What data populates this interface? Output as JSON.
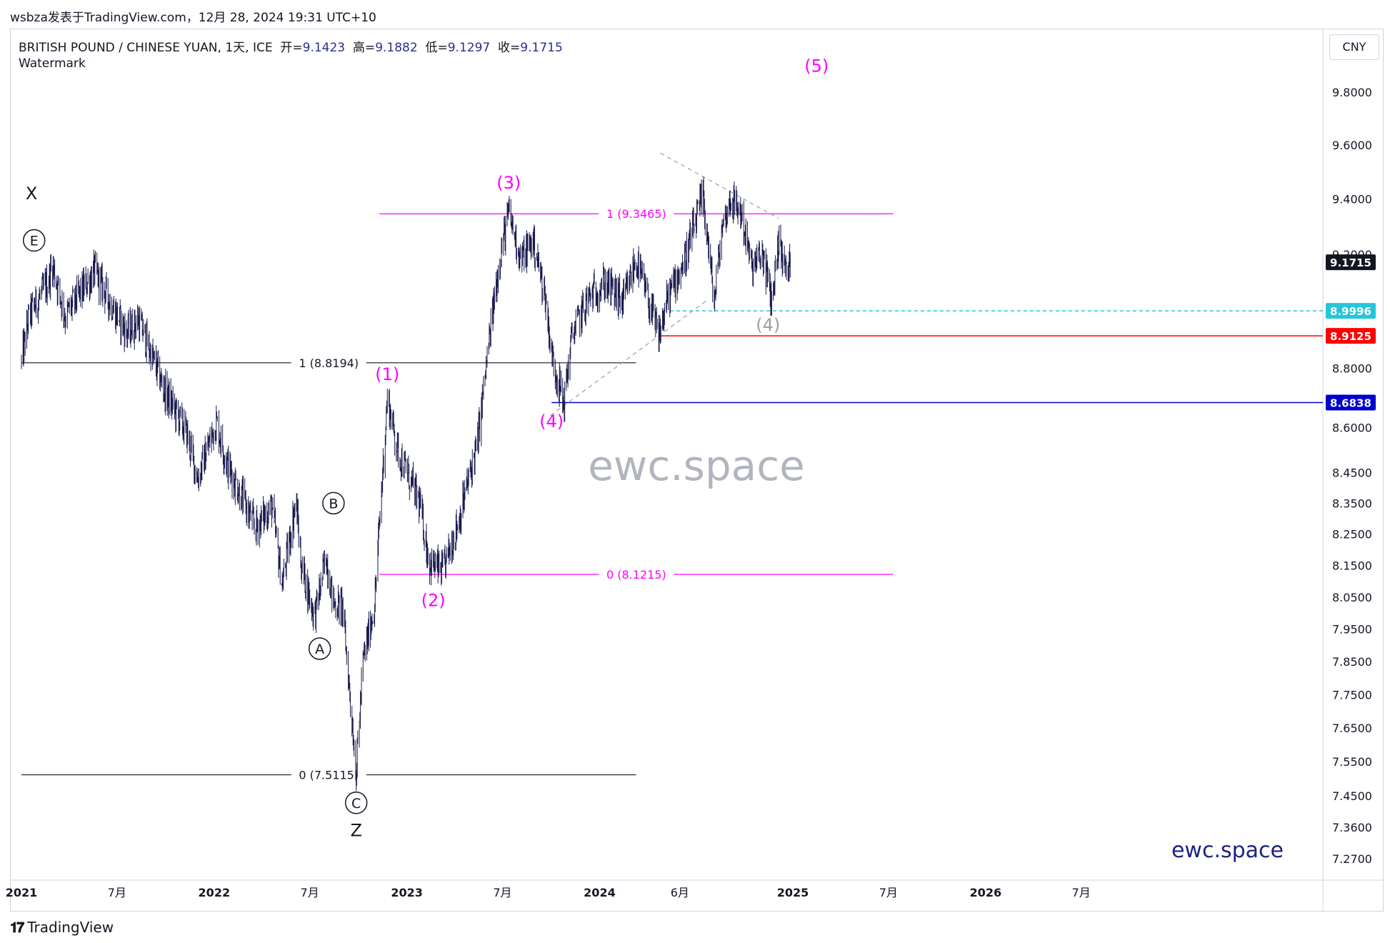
{
  "caption": "wsbza发表于TradingView.com，12月 28, 2024 19:31 UTC+10",
  "legend": {
    "symbol": "BRITISH POUND / CHINESE YUAN, 1天, ICE",
    "open_label": "开=",
    "open": "9.1423",
    "high_label": "高=",
    "high": "9.1882",
    "low_label": "低=",
    "low": "9.1297",
    "close_label": "收=",
    "close": "9.1715",
    "indicator": "Watermark"
  },
  "currency_button": "CNY",
  "watermark_center": "ewc.space",
  "watermark_corner": "ewc.space",
  "footer_brand": "TradingView",
  "colors": {
    "candle": "#1a1a4e",
    "magenta": "#ff00ff",
    "black_fib": "#131722",
    "cyan": "#26c6da",
    "red": "#ff0000",
    "blue": "#0000cc",
    "gray": "#9e9e9e"
  },
  "chart_data": {
    "type": "candlestick",
    "price_scale": "log",
    "ylim": [
      7.24,
      10.0
    ],
    "y_ticks": [
      "9.8000",
      "9.6000",
      "9.4000",
      "9.2000",
      "8.8000",
      "8.6000",
      "8.4500",
      "8.3500",
      "8.2500",
      "8.1500",
      "8.0500",
      "7.9500",
      "7.8500",
      "7.7500",
      "7.6500",
      "7.5500",
      "7.4500",
      "7.3600",
      "7.2700"
    ],
    "x_ticks": [
      "2021",
      "7月",
      "2022",
      "7月",
      "2023",
      "7月",
      "2024",
      "6月",
      "2025",
      "7月",
      "2026",
      "7月"
    ],
    "x_tick_dates": [
      "2021-01-01",
      "2021-07-01",
      "2022-01-01",
      "2022-07-01",
      "2023-01-01",
      "2023-07-01",
      "2024-01-01",
      "2024-06-01",
      "2025-01-01",
      "2025-07-01",
      "2026-01-01",
      "2026-07-01"
    ],
    "price_path": [
      [
        "2021-01-01",
        8.82
      ],
      [
        "2021-01-15",
        8.98
      ],
      [
        "2021-02-20",
        9.1
      ],
      [
        "2021-03-01",
        9.16
      ],
      [
        "2021-03-25",
        8.98
      ],
      [
        "2021-05-20",
        9.14
      ],
      [
        "2021-06-15",
        9.04
      ],
      [
        "2021-07-20",
        8.92
      ],
      [
        "2021-08-10",
        8.97
      ],
      [
        "2021-09-30",
        8.72
      ],
      [
        "2021-11-10",
        8.58
      ],
      [
        "2021-12-01",
        8.43
      ],
      [
        "2022-01-05",
        8.62
      ],
      [
        "2022-01-25",
        8.48
      ],
      [
        "2022-03-20",
        8.27
      ],
      [
        "2022-04-20",
        8.34
      ],
      [
        "2022-05-10",
        8.09
      ],
      [
        "2022-06-05",
        8.36
      ],
      [
        "2022-06-15",
        8.15
      ],
      [
        "2022-07-10",
        7.99
      ],
      [
        "2022-07-20",
        8.07
      ],
      [
        "2022-08-01",
        8.18
      ],
      [
        "2022-08-15",
        8.03
      ],
      [
        "2022-09-01",
        8.02
      ],
      [
        "2022-09-27",
        7.52
      ],
      [
        "2022-10-10",
        7.85
      ],
      [
        "2022-11-01",
        8.03
      ],
      [
        "2022-11-25",
        8.7
      ],
      [
        "2022-12-15",
        8.52
      ],
      [
        "2023-01-25",
        8.35
      ],
      [
        "2023-02-12",
        8.16
      ],
      [
        "2023-03-10",
        8.13
      ],
      [
        "2023-04-10",
        8.3
      ],
      [
        "2023-05-15",
        8.55
      ],
      [
        "2023-06-01",
        8.82
      ],
      [
        "2023-06-25",
        9.18
      ],
      [
        "2023-07-13",
        9.35
      ],
      [
        "2023-08-05",
        9.18
      ],
      [
        "2023-08-28",
        9.25
      ],
      [
        "2023-09-20",
        9.05
      ],
      [
        "2023-10-02",
        8.85
      ],
      [
        "2023-10-25",
        8.68
      ],
      [
        "2023-11-10",
        8.92
      ],
      [
        "2023-12-10",
        9.04
      ],
      [
        "2024-01-10",
        9.1
      ],
      [
        "2024-02-15",
        9.03
      ],
      [
        "2024-03-10",
        9.18
      ],
      [
        "2024-04-22",
        8.91
      ],
      [
        "2024-05-10",
        9.05
      ],
      [
        "2024-06-10",
        9.18
      ],
      [
        "2024-07-15",
        9.41
      ],
      [
        "2024-08-05",
        9.03
      ],
      [
        "2024-08-20",
        9.3
      ],
      [
        "2024-09-05",
        9.4
      ],
      [
        "2024-09-25",
        9.35
      ],
      [
        "2024-10-15",
        9.15
      ],
      [
        "2024-11-05",
        9.2
      ],
      [
        "2024-11-22",
        9.03
      ],
      [
        "2024-12-05",
        9.25
      ],
      [
        "2024-12-20",
        9.13
      ],
      [
        "2024-12-27",
        9.17
      ]
    ],
    "fib_levels": [
      {
        "label": "1 (8.8194)",
        "value": 8.8194,
        "x_start": "2021-01-01",
        "x_end": "2024-03-10",
        "color": "#131722"
      },
      {
        "label": "0 (7.5115)",
        "value": 7.5115,
        "x_start": "2021-01-01",
        "x_end": "2024-03-10",
        "color": "#131722"
      },
      {
        "label": "1 (9.3465)",
        "value": 9.3465,
        "x_start": "2022-11-10",
        "x_end": "2025-07-10",
        "color": "#ff00ff"
      },
      {
        "label": "0 (8.1215)",
        "value": 8.1215,
        "x_start": "2022-11-10",
        "x_end": "2025-07-10",
        "color": "#ff00ff"
      }
    ],
    "horizontal_lines": [
      {
        "value": 8.9996,
        "label": "8.9996",
        "x_start": "2024-05-01",
        "style": "dashed",
        "color": "#26c6da"
      },
      {
        "value": 8.9125,
        "label": "8.9125",
        "x_start": "2024-04-22",
        "style": "solid",
        "color": "#ff0000"
      },
      {
        "value": 8.6838,
        "label": "8.6838",
        "x_start": "2023-10-02",
        "style": "solid",
        "color": "#0000cc"
      }
    ],
    "last_price": {
      "value": 9.1715,
      "label": "9.1715"
    },
    "trendlines": [
      {
        "x1": "2023-09-30",
        "y1": 8.64,
        "x2": "2024-07-25",
        "y2": 9.04
      },
      {
        "x1": "2024-04-25",
        "y1": 9.57,
        "x2": "2024-12-05",
        "y2": 9.33
      }
    ],
    "wave_labels": [
      {
        "text": "X",
        "date": "2021-01-20",
        "price": 9.42,
        "style": "plain"
      },
      {
        "text": "E",
        "date": "2021-01-25",
        "price": 9.25,
        "style": "circled"
      },
      {
        "text": "B",
        "date": "2022-08-15",
        "price": 8.35,
        "style": "circled"
      },
      {
        "text": "A",
        "date": "2022-07-20",
        "price": 7.89,
        "style": "circled"
      },
      {
        "text": "C",
        "date": "2022-09-27",
        "price": 7.43,
        "style": "circled"
      },
      {
        "text": "Z",
        "date": "2022-09-27",
        "price": 7.35,
        "style": "plain"
      },
      {
        "text": "(1)",
        "date": "2022-11-25",
        "price": 8.78,
        "style": "magenta"
      },
      {
        "text": "(2)",
        "date": "2023-02-20",
        "price": 8.04,
        "style": "magenta"
      },
      {
        "text": "(3)",
        "date": "2023-07-13",
        "price": 9.46,
        "style": "magenta"
      },
      {
        "text": "(4)",
        "date": "2023-10-02",
        "price": 8.62,
        "style": "magenta"
      },
      {
        "text": "(4)",
        "date": "2024-11-15",
        "price": 8.95,
        "style": "gray"
      },
      {
        "text": "(5)",
        "date": "2025-02-15",
        "price": 9.9,
        "style": "magenta"
      }
    ]
  }
}
